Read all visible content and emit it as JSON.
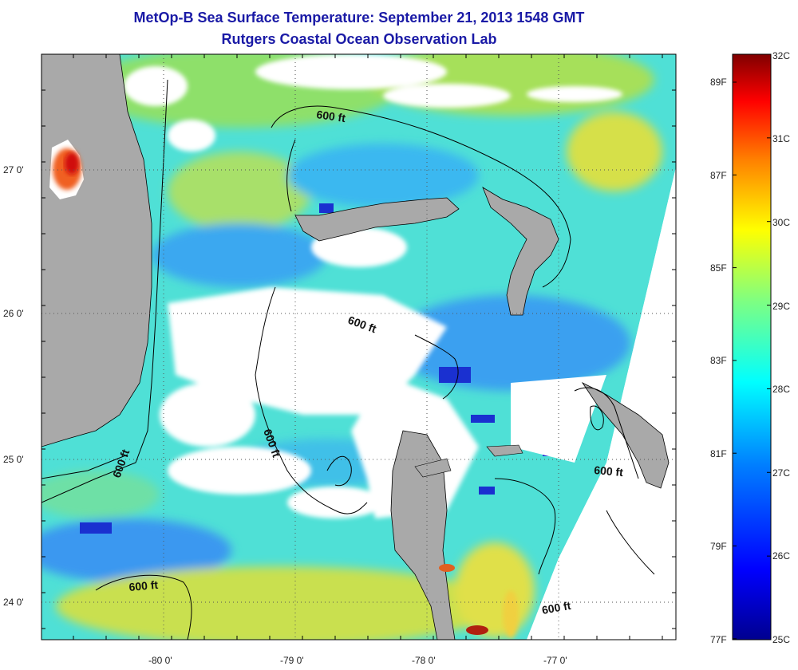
{
  "title": "MetOp-B Sea Surface Temperature:  September 21, 2013 1548 GMT",
  "subtitle": "Rutgers Coastal Ocean Observation Lab",
  "map": {
    "longitude_ticks": [
      {
        "value": -80,
        "label": "-80 0'"
      },
      {
        "value": -79,
        "label": "-79 0'"
      },
      {
        "value": -78,
        "label": "-78 0'"
      },
      {
        "value": -77,
        "label": "-77 0'"
      }
    ],
    "latitude_ticks": [
      {
        "value": 27,
        "label": "27 0'"
      },
      {
        "value": 26,
        "label": "26 0'"
      },
      {
        "value": 25,
        "label": "25 0'"
      },
      {
        "value": 24,
        "label": "24 0'"
      }
    ],
    "contour_labels": [
      "600 ft",
      "600 ft",
      "600 ft",
      "600 ft",
      "600 ft",
      "600 ft"
    ]
  },
  "colorbar": {
    "celsius_labels": [
      "32C",
      "31C",
      "30C",
      "29C",
      "28C",
      "27C",
      "26C",
      "25C"
    ],
    "fahrenheit_labels": [
      "89F",
      "87F",
      "85F",
      "83F",
      "81F",
      "79F",
      "77F"
    ],
    "colors": [
      "#00008f",
      "#0000ff",
      "#0080ff",
      "#00ffff",
      "#80ff80",
      "#ffff00",
      "#ff8000",
      "#ff0000",
      "#800000"
    ]
  },
  "colors": {
    "title": "#1a1aa6",
    "land": "#a9a9a9",
    "cloud": "#ffffff"
  }
}
